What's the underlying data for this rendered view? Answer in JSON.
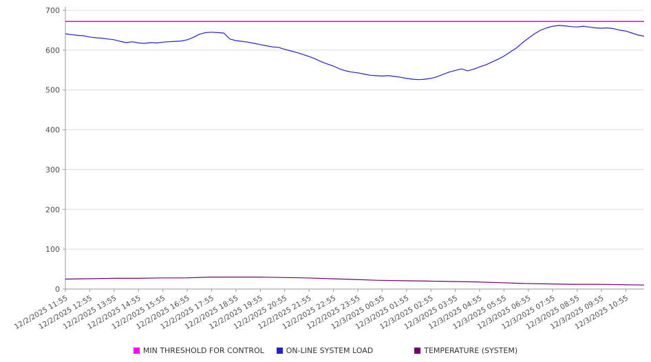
{
  "chart_data": {
    "type": "line",
    "title": "",
    "xlabel": "",
    "ylabel": "",
    "ylim": [
      0,
      700
    ],
    "y_ticks": [
      0,
      100,
      200,
      300,
      400,
      500,
      600,
      700
    ],
    "grid": "horizontal",
    "legend_position": "bottom",
    "x_labels": [
      "12/2/2025 11:55",
      "12/2/2025 12:55",
      "12/2/2025 13:55",
      "12/2/2025 14:55",
      "12/2/2025 15:55",
      "12/2/2025 16:55",
      "12/2/2025 17:55",
      "12/2/2025 18:55",
      "12/2/2025 19:55",
      "12/2/2025 20:55",
      "12/2/2025 21:55",
      "12/2/2025 22:55",
      "12/2/2025 23:55",
      "12/3/2025 00:55",
      "12/3/2025 01:55",
      "12/3/2025 02:55",
      "12/3/2025 03:55",
      "12/3/2025 04:55",
      "12/3/2025 05:55",
      "12/3/2025 06:55",
      "12/3/2025 07:55",
      "12/3/2025 08:55",
      "12/3/2025 09:55",
      "12/3/2025 10:55"
    ],
    "series": [
      {
        "name": "MIN THRESHOLD FOR CONTROL",
        "color": "#ff00ff",
        "value": 672
      },
      {
        "name": "ON-LINE SYSTEM LOAD",
        "color": "#2222cc",
        "values": [
          641,
          639,
          637,
          636,
          633,
          631,
          630,
          628,
          626,
          622,
          619,
          621,
          618,
          617,
          619,
          618,
          620,
          621,
          622,
          623,
          626,
          632,
          640,
          644,
          645,
          644,
          643,
          628,
          624,
          622,
          620,
          617,
          614,
          611,
          608,
          607,
          602,
          598,
          594,
          589,
          584,
          578,
          571,
          565,
          560,
          553,
          548,
          545,
          543,
          540,
          537,
          536,
          535,
          536,
          534,
          532,
          529,
          527,
          526,
          527,
          529,
          533,
          539,
          545,
          549,
          553,
          548,
          552,
          558,
          563,
          570,
          577,
          585,
          595,
          605,
          618,
          630,
          641,
          650,
          656,
          660,
          662,
          661,
          659,
          658,
          660,
          658,
          656,
          655,
          656,
          654,
          650,
          648,
          643,
          638,
          635
        ]
      },
      {
        "name": "TEMPERATURE (SYSTEM)",
        "color": "#70006e",
        "values": [
          25,
          26,
          27,
          27,
          28,
          28,
          30,
          30,
          30,
          29,
          28,
          26,
          24,
          22,
          21,
          20,
          19,
          18,
          16,
          14,
          13,
          12,
          12,
          11,
          10
        ]
      }
    ]
  },
  "legend": {
    "items": [
      {
        "label": "MIN THRESHOLD FOR CONTROL"
      },
      {
        "label": "ON-LINE SYSTEM LOAD"
      },
      {
        "label": "TEMPERATURE (SYSTEM)"
      }
    ]
  }
}
